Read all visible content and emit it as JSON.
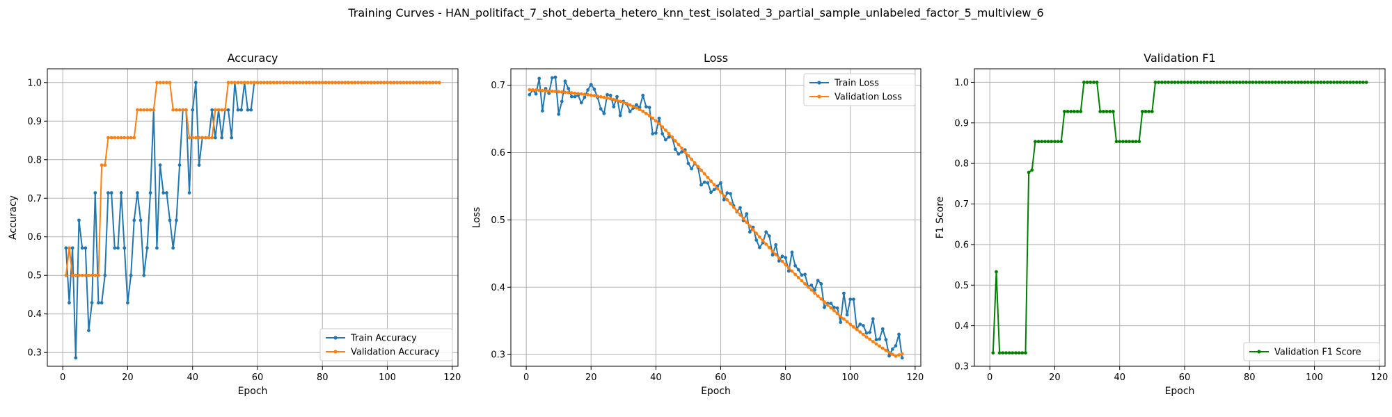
{
  "figure": {
    "suptitle": "Training Curves - HAN_politifact_7_shot_deberta_hetero_knn_test_isolated_3_partial_sample_unlabeled_factor_5_multiview_6"
  },
  "colors": {
    "train": "#1f77b4",
    "validation": "#ff7f0e",
    "f1": "#008000",
    "grid": "#b0b0b0"
  },
  "chart_data": [
    {
      "type": "line",
      "title": "Accuracy",
      "xlabel": "Epoch",
      "ylabel": "Accuracy",
      "xlim": [
        -4.75,
        121.75
      ],
      "ylim": [
        0.2643,
        1.0357
      ],
      "xticks": [
        0,
        20,
        40,
        60,
        80,
        100,
        120
      ],
      "yticks": [
        0.3,
        0.4,
        0.5,
        0.6,
        0.7,
        0.8,
        0.9,
        1.0
      ],
      "ytick_labels": [
        "0.3",
        "0.4",
        "0.5",
        "0.6",
        "0.7",
        "0.8",
        "0.9",
        "1.0"
      ],
      "grid": true,
      "legend_loc": "lower-right",
      "series": [
        {
          "name": "Train Accuracy",
          "color": "#1f77b4",
          "x_start": 1,
          "values": [
            0.571,
            0.429,
            0.571,
            0.286,
            0.643,
            0.571,
            0.571,
            0.357,
            0.429,
            0.714,
            0.429,
            0.429,
            0.5,
            0.714,
            0.714,
            0.571,
            0.571,
            0.714,
            0.571,
            0.429,
            0.5,
            0.643,
            0.714,
            0.643,
            0.5,
            0.571,
            0.714,
            0.929,
            0.571,
            0.786,
            0.714,
            0.714,
            0.643,
            0.571,
            0.643,
            0.786,
            0.929,
            0.929,
            0.714,
            0.929,
            1.0,
            0.786,
            0.857,
            0.857,
            0.857,
            0.929,
            0.857,
            0.929,
            0.857,
            0.929,
            0.929,
            0.857,
            1.0,
            0.929,
            0.929,
            1.0,
            0.929,
            0.929,
            1.0,
            1.0,
            1.0,
            1.0,
            1.0,
            1.0,
            1.0,
            1.0,
            1.0,
            1.0,
            1.0,
            1.0,
            1.0,
            1.0,
            1.0,
            1.0,
            1.0,
            1.0,
            1.0,
            1.0,
            1.0,
            1.0,
            1.0,
            1.0,
            1.0,
            1.0,
            1.0,
            1.0,
            1.0,
            1.0,
            1.0,
            1.0,
            1.0,
            1.0,
            1.0,
            1.0,
            1.0,
            1.0,
            1.0,
            1.0,
            1.0,
            1.0,
            1.0,
            1.0,
            1.0,
            1.0,
            1.0,
            1.0,
            1.0,
            1.0,
            1.0,
            1.0,
            1.0,
            1.0,
            1.0,
            1.0,
            1.0,
            1.0
          ]
        },
        {
          "name": "Validation Accuracy",
          "color": "#ff7f0e",
          "x_start": 1,
          "values": [
            0.5,
            0.571,
            0.5,
            0.5,
            0.5,
            0.5,
            0.5,
            0.5,
            0.5,
            0.5,
            0.5,
            0.786,
            0.786,
            0.857,
            0.857,
            0.857,
            0.857,
            0.857,
            0.857,
            0.857,
            0.857,
            0.857,
            0.929,
            0.929,
            0.929,
            0.929,
            0.929,
            0.929,
            1.0,
            1.0,
            1.0,
            1.0,
            1.0,
            0.929,
            0.929,
            0.929,
            0.929,
            0.929,
            0.857,
            0.857,
            0.857,
            0.857,
            0.857,
            0.857,
            0.857,
            0.857,
            0.929,
            0.929,
            0.929,
            0.929,
            1.0,
            1.0,
            1.0,
            1.0,
            1.0,
            1.0,
            1.0,
            1.0,
            1.0,
            1.0,
            1.0,
            1.0,
            1.0,
            1.0,
            1.0,
            1.0,
            1.0,
            1.0,
            1.0,
            1.0,
            1.0,
            1.0,
            1.0,
            1.0,
            1.0,
            1.0,
            1.0,
            1.0,
            1.0,
            1.0,
            1.0,
            1.0,
            1.0,
            1.0,
            1.0,
            1.0,
            1.0,
            1.0,
            1.0,
            1.0,
            1.0,
            1.0,
            1.0,
            1.0,
            1.0,
            1.0,
            1.0,
            1.0,
            1.0,
            1.0,
            1.0,
            1.0,
            1.0,
            1.0,
            1.0,
            1.0,
            1.0,
            1.0,
            1.0,
            1.0,
            1.0,
            1.0,
            1.0,
            1.0,
            1.0,
            1.0
          ]
        }
      ]
    },
    {
      "type": "line",
      "title": "Loss",
      "xlabel": "Epoch",
      "ylabel": "Loss",
      "xlim": [
        -4.75,
        121.75
      ],
      "ylim": [
        0.2826,
        0.7244
      ],
      "xticks": [
        0,
        20,
        40,
        60,
        80,
        100,
        120
      ],
      "yticks": [
        0.3,
        0.4,
        0.5,
        0.6,
        0.7
      ],
      "ytick_labels": [
        "0.3",
        "0.4",
        "0.5",
        "0.6",
        "0.7"
      ],
      "grid": true,
      "legend_loc": "upper-right",
      "series": [
        {
          "name": "Train Loss",
          "color": "#1f77b4",
          "x_start": 1,
          "values": [
            0.686,
            0.693,
            0.687,
            0.71,
            0.662,
            0.695,
            0.688,
            0.711,
            0.712,
            0.657,
            0.676,
            0.706,
            0.695,
            0.683,
            0.683,
            0.685,
            0.674,
            0.682,
            0.693,
            0.701,
            0.694,
            0.682,
            0.665,
            0.658,
            0.686,
            0.685,
            0.668,
            0.683,
            0.655,
            0.676,
            0.672,
            0.661,
            0.666,
            0.671,
            0.667,
            0.685,
            0.668,
            0.667,
            0.628,
            0.629,
            0.651,
            0.628,
            0.619,
            0.623,
            0.623,
            0.605,
            0.598,
            0.601,
            0.604,
            0.584,
            0.576,
            0.584,
            0.578,
            0.552,
            0.556,
            0.555,
            0.541,
            0.545,
            0.55,
            0.555,
            0.53,
            0.54,
            0.539,
            0.521,
            0.512,
            0.518,
            0.499,
            0.509,
            0.482,
            0.489,
            0.47,
            0.459,
            0.466,
            0.482,
            0.476,
            0.448,
            0.463,
            0.439,
            0.446,
            0.444,
            0.424,
            0.452,
            0.432,
            0.426,
            0.418,
            0.419,
            0.401,
            0.403,
            0.396,
            0.41,
            0.405,
            0.37,
            0.376,
            0.376,
            0.37,
            0.369,
            0.348,
            0.391,
            0.359,
            0.382,
            0.382,
            0.338,
            0.345,
            0.343,
            0.332,
            0.333,
            0.353,
            0.322,
            0.323,
            0.338,
            0.322,
            0.298,
            0.308,
            0.313,
            0.33,
            0.295
          ]
        },
        {
          "name": "Validation Loss",
          "color": "#ff7f0e",
          "x_start": 1,
          "values": [
            0.6933,
            0.693,
            0.6927,
            0.6924,
            0.6921,
            0.6918,
            0.6914,
            0.6911,
            0.6907,
            0.6903,
            0.6899,
            0.6895,
            0.6891,
            0.6886,
            0.6881,
            0.6876,
            0.6871,
            0.6865,
            0.6859,
            0.6852,
            0.6845,
            0.6837,
            0.6829,
            0.682,
            0.681,
            0.6799,
            0.6787,
            0.6774,
            0.676,
            0.6744,
            0.6727,
            0.6708,
            0.6687,
            0.6664,
            0.6639,
            0.6611,
            0.6581,
            0.6548,
            0.6511,
            0.6471,
            0.6428,
            0.6381,
            0.6332,
            0.6281,
            0.6228,
            0.6174,
            0.6119,
            0.6064,
            0.6009,
            0.5954,
            0.59,
            0.5846,
            0.5792,
            0.5738,
            0.5684,
            0.563,
            0.5576,
            0.5522,
            0.5467,
            0.5411,
            0.5355,
            0.5299,
            0.5243,
            0.5187,
            0.5131,
            0.5075,
            0.5019,
            0.4964,
            0.4909,
            0.4854,
            0.48,
            0.4746,
            0.4693,
            0.464,
            0.4588,
            0.4536,
            0.4485,
            0.4434,
            0.4384,
            0.4335,
            0.4286,
            0.4238,
            0.419,
            0.4143,
            0.4096,
            0.405,
            0.4004,
            0.3959,
            0.3914,
            0.3869,
            0.3825,
            0.3781,
            0.3737,
            0.3694,
            0.3652,
            0.361,
            0.3569,
            0.3528,
            0.3488,
            0.3449,
            0.341,
            0.3372,
            0.3335,
            0.3298,
            0.3262,
            0.3227,
            0.3192,
            0.3158,
            0.3125,
            0.3093,
            0.3062,
            0.3032,
            0.3003,
            0.2976,
            0.2995,
            0.301
          ]
        }
      ]
    },
    {
      "type": "line",
      "title": "Validation F1",
      "xlabel": "Epoch",
      "ylabel": "F1 Score",
      "xlim": [
        -4.75,
        121.75
      ],
      "ylim": [
        0.3,
        1.0333
      ],
      "xticks": [
        0,
        20,
        40,
        60,
        80,
        100,
        120
      ],
      "yticks": [
        0.3,
        0.4,
        0.5,
        0.6,
        0.7,
        0.8,
        0.9,
        1.0
      ],
      "ytick_labels": [
        "0.3",
        "0.4",
        "0.5",
        "0.6",
        "0.7",
        "0.8",
        "0.9",
        "1.0"
      ],
      "grid": true,
      "legend_loc": "lower-right",
      "series": [
        {
          "name": "Validation F1 Score",
          "color": "#008000",
          "x_start": 1,
          "values": [
            0.333,
            0.533,
            0.333,
            0.333,
            0.333,
            0.333,
            0.333,
            0.333,
            0.333,
            0.333,
            0.333,
            0.778,
            0.784,
            0.854,
            0.854,
            0.854,
            0.854,
            0.854,
            0.854,
            0.854,
            0.854,
            0.854,
            0.928,
            0.928,
            0.928,
            0.928,
            0.928,
            0.928,
            1.0,
            1.0,
            1.0,
            1.0,
            1.0,
            0.928,
            0.928,
            0.928,
            0.928,
            0.928,
            0.854,
            0.854,
            0.854,
            0.854,
            0.854,
            0.854,
            0.854,
            0.854,
            0.928,
            0.928,
            0.928,
            0.928,
            1.0,
            1.0,
            1.0,
            1.0,
            1.0,
            1.0,
            1.0,
            1.0,
            1.0,
            1.0,
            1.0,
            1.0,
            1.0,
            1.0,
            1.0,
            1.0,
            1.0,
            1.0,
            1.0,
            1.0,
            1.0,
            1.0,
            1.0,
            1.0,
            1.0,
            1.0,
            1.0,
            1.0,
            1.0,
            1.0,
            1.0,
            1.0,
            1.0,
            1.0,
            1.0,
            1.0,
            1.0,
            1.0,
            1.0,
            1.0,
            1.0,
            1.0,
            1.0,
            1.0,
            1.0,
            1.0,
            1.0,
            1.0,
            1.0,
            1.0,
            1.0,
            1.0,
            1.0,
            1.0,
            1.0,
            1.0,
            1.0,
            1.0,
            1.0,
            1.0,
            1.0,
            1.0,
            1.0,
            1.0,
            1.0,
            1.0
          ]
        }
      ]
    }
  ]
}
